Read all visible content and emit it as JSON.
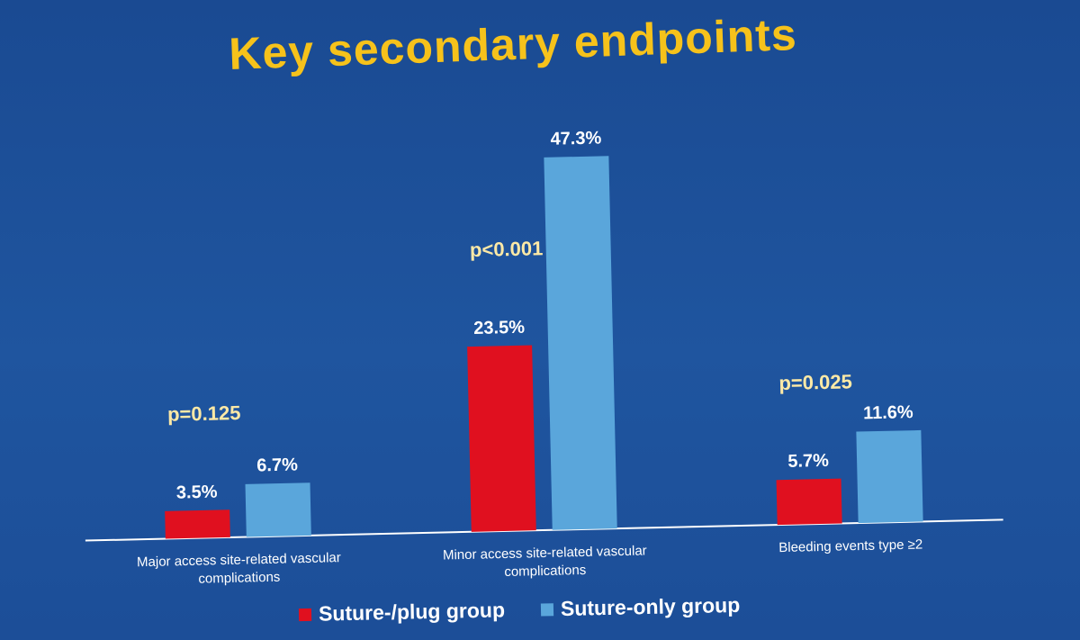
{
  "slide": {
    "title": "Key secondary endpoints"
  },
  "colors": {
    "background": "#1d4f96",
    "suture_plug": "#e0101f",
    "suture_only": "#5aa6db",
    "title": "#f6c21b",
    "pvalue_text": "#fde9a6"
  },
  "chart_data": {
    "type": "bar",
    "title": "Key secondary endpoints",
    "categories": [
      "Major access site-related vascular complications",
      "Minor access site-related vascular complications",
      "Bleeding events type ≥2"
    ],
    "category_lines": [
      [
        "Major access site-related vascular",
        "complications"
      ],
      [
        "Minor access site-related vascular",
        "complications"
      ],
      [
        "Bleeding events type ≥2"
      ]
    ],
    "series": [
      {
        "name": "Suture-/plug group",
        "values": [
          3.5,
          23.5,
          5.7
        ],
        "labels": [
          "3.5%",
          "23.5%",
          "5.7%"
        ]
      },
      {
        "name": "Suture-only group",
        "values": [
          6.7,
          47.3,
          11.6
        ],
        "labels": [
          "6.7%",
          "47.3%",
          "11.6%"
        ]
      }
    ],
    "p_values": [
      "p=0.125",
      "p<0.001",
      "p=0.025"
    ],
    "unit": "%",
    "ylim": [
      0,
      50
    ],
    "grid": false,
    "legend_position": "bottom",
    "xlabel": "",
    "ylabel": ""
  }
}
